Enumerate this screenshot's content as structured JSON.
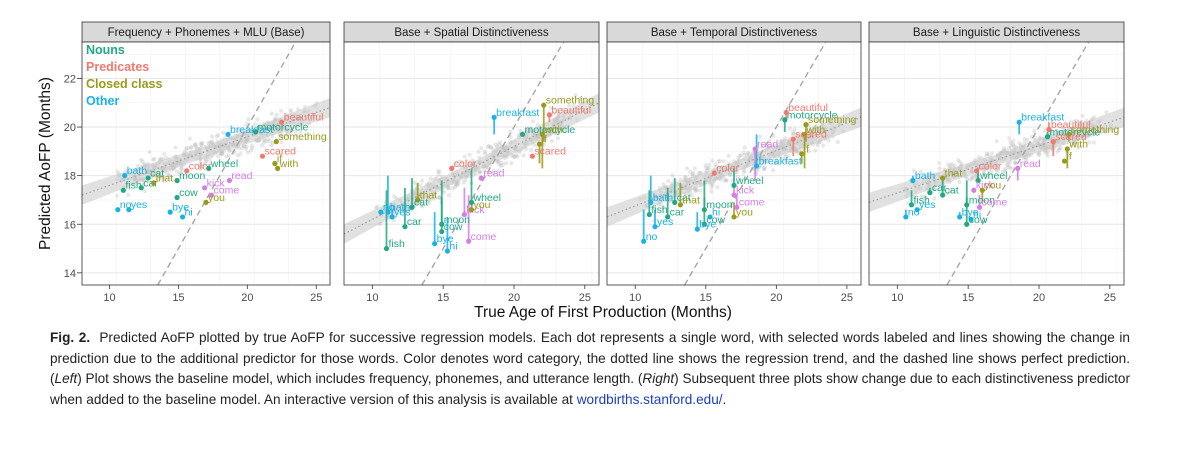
{
  "chart_data": {
    "type": "scatter",
    "ylabel": "Predicted AoFP (Months)",
    "xlabel": "True Age of First Production (Months)",
    "xlim": [
      8,
      26
    ],
    "ylim": [
      13.5,
      23.5
    ],
    "x_ticks": [
      10,
      15,
      20,
      25
    ],
    "y_ticks": [
      14,
      16,
      18,
      20,
      22
    ],
    "grid": true,
    "legend": {
      "placement": "top-left inside first panel",
      "items": [
        {
          "label": "Nouns",
          "color": "#22a884"
        },
        {
          "label": "Predicates",
          "color": "#f07a6e"
        },
        {
          "label": "Closed class",
          "color": "#9a9a1a"
        },
        {
          "label": "Other",
          "color": "#19b2e6"
        }
      ]
    },
    "category_colors": {
      "noun": "#22a884",
      "pred": "#f07a6e",
      "closed": "#9a9a1a",
      "other": "#19b2e6",
      "verb": "#d77ee6"
    },
    "reference_line": "y = x (dashed, perfect prediction)",
    "regression_line": "dotted with grey confidence band",
    "panels": [
      {
        "title": "Frequency + Phonemes + MLU (Base)",
        "trend": [
          [
            8,
            17.2
          ],
          [
            26,
            20.8
          ]
        ],
        "words": [
          {
            "w": "bath",
            "cat": "other",
            "x": 11.1,
            "y": 18.0
          },
          {
            "w": "cat",
            "cat": "noun",
            "x": 12.8,
            "y": 17.9
          },
          {
            "w": "fish",
            "cat": "noun",
            "x": 11.0,
            "y": 17.4
          },
          {
            "w": "car",
            "cat": "noun",
            "x": 12.3,
            "y": 17.5
          },
          {
            "w": "that",
            "cat": "closed",
            "x": 13.2,
            "y": 17.7
          },
          {
            "w": "moon",
            "cat": "noun",
            "x": 14.9,
            "y": 17.8
          },
          {
            "w": "color",
            "cat": "pred",
            "x": 15.6,
            "y": 18.2
          },
          {
            "w": "wheel",
            "cat": "noun",
            "x": 17.2,
            "y": 18.3
          },
          {
            "w": "cow",
            "cat": "noun",
            "x": 14.9,
            "y": 17.1
          },
          {
            "w": "kick",
            "cat": "verb",
            "x": 16.9,
            "y": 17.5
          },
          {
            "w": "come",
            "cat": "verb",
            "x": 17.4,
            "y": 17.2
          },
          {
            "w": "read",
            "cat": "verb",
            "x": 18.7,
            "y": 17.8
          },
          {
            "w": "you",
            "cat": "closed",
            "x": 17.0,
            "y": 16.9
          },
          {
            "w": "no",
            "cat": "other",
            "x": 10.6,
            "y": 16.6
          },
          {
            "w": "yes",
            "cat": "other",
            "x": 11.4,
            "y": 16.6
          },
          {
            "w": "bye",
            "cat": "other",
            "x": 14.4,
            "y": 16.5
          },
          {
            "w": "hi",
            "cat": "other",
            "x": 15.3,
            "y": 16.3
          },
          {
            "w": "breakfast",
            "cat": "other",
            "x": 18.6,
            "y": 19.7
          },
          {
            "w": "beautiful",
            "cat": "pred",
            "x": 22.5,
            "y": 20.2
          },
          {
            "w": "motorcycle",
            "cat": "noun",
            "x": 20.6,
            "y": 19.8
          },
          {
            "w": "something",
            "cat": "closed",
            "x": 22.1,
            "y": 19.4
          },
          {
            "w": "scared",
            "cat": "pred",
            "x": 21.1,
            "y": 18.8
          },
          {
            "w": "if",
            "cat": "closed",
            "x": 22.0,
            "y": 18.5
          },
          {
            "w": "with",
            "cat": "closed",
            "x": 22.2,
            "y": 18.3
          }
        ]
      },
      {
        "title": "Base + Spatial Distinctiveness",
        "trend": [
          [
            8,
            15.6
          ],
          [
            26,
            21.0
          ]
        ],
        "words": [
          {
            "w": "no",
            "cat": "other",
            "x": 10.6,
            "y": 16.5,
            "y0": 16.6
          },
          {
            "w": "bath",
            "cat": "other",
            "x": 11.1,
            "y": 16.5,
            "y0": 18.0
          },
          {
            "w": "yes",
            "cat": "other",
            "x": 11.4,
            "y": 16.3,
            "y0": 16.6
          },
          {
            "w": "fish",
            "cat": "noun",
            "x": 11.0,
            "y": 15.0,
            "y0": 17.4
          },
          {
            "w": "that",
            "cat": "closed",
            "x": 13.2,
            "y": 17.0,
            "y0": 17.7
          },
          {
            "w": "cat",
            "cat": "noun",
            "x": 12.8,
            "y": 16.7,
            "y0": 17.9
          },
          {
            "w": "car",
            "cat": "noun",
            "x": 12.3,
            "y": 15.9,
            "y0": 17.5
          },
          {
            "w": "moon",
            "cat": "noun",
            "x": 14.9,
            "y": 16.0,
            "y0": 17.8
          },
          {
            "w": "cow",
            "cat": "noun",
            "x": 14.9,
            "y": 15.7,
            "y0": 17.1
          },
          {
            "w": "bye",
            "cat": "other",
            "x": 14.4,
            "y": 15.2,
            "y0": 16.5
          },
          {
            "w": "hi",
            "cat": "other",
            "x": 15.3,
            "y": 14.9,
            "y0": 16.3
          },
          {
            "w": "come",
            "cat": "verb",
            "x": 16.8,
            "y": 15.3,
            "y0": 17.2
          },
          {
            "w": "kick",
            "cat": "verb",
            "x": 16.5,
            "y": 16.4,
            "y0": 17.5
          },
          {
            "w": "you",
            "cat": "closed",
            "x": 17.0,
            "y": 16.6,
            "y0": 16.9
          },
          {
            "w": "wheel",
            "cat": "noun",
            "x": 17.0,
            "y": 16.9,
            "y0": 18.3
          },
          {
            "w": "color",
            "cat": "pred",
            "x": 15.6,
            "y": 18.3,
            "y0": 18.2
          },
          {
            "w": "read",
            "cat": "verb",
            "x": 17.7,
            "y": 17.9,
            "y0": 17.8
          },
          {
            "w": "breakfast",
            "cat": "other",
            "x": 18.6,
            "y": 20.4,
            "y0": 19.7
          },
          {
            "w": "motorcycle",
            "cat": "noun",
            "x": 20.6,
            "y": 19.7,
            "y0": 19.8
          },
          {
            "w": "something",
            "cat": "closed",
            "x": 22.1,
            "y": 20.9,
            "y0": 19.4
          },
          {
            "w": "beautiful",
            "cat": "pred",
            "x": 22.5,
            "y": 20.5,
            "y0": 20.2
          },
          {
            "w": "with",
            "cat": "closed",
            "x": 22.0,
            "y": 19.7,
            "y0": 18.3
          },
          {
            "w": "if",
            "cat": "closed",
            "x": 21.8,
            "y": 19.3,
            "y0": 18.5
          },
          {
            "w": "scared",
            "cat": "pred",
            "x": 21.3,
            "y": 18.8,
            "y0": 18.8
          }
        ]
      },
      {
        "title": "Base + Temporal Distinctiveness",
        "trend": [
          [
            8,
            16.3
          ],
          [
            26,
            20.4
          ]
        ],
        "words": [
          {
            "w": "motorcycle",
            "cat": "noun",
            "x": 20.6,
            "y": 20.3,
            "y0": 19.8
          },
          {
            "w": "beautiful",
            "cat": "pred",
            "x": 20.7,
            "y": 20.6,
            "y0": 20.2
          },
          {
            "w": "something",
            "cat": "closed",
            "x": 22.1,
            "y": 20.1,
            "y0": 19.4
          },
          {
            "w": "with",
            "cat": "closed",
            "x": 22.0,
            "y": 19.7,
            "y0": 18.3
          },
          {
            "w": "scared",
            "cat": "pred",
            "x": 21.2,
            "y": 19.5,
            "y0": 18.8
          },
          {
            "w": "read",
            "cat": "verb",
            "x": 18.5,
            "y": 19.1,
            "y0": 17.8
          },
          {
            "w": "if",
            "cat": "closed",
            "x": 21.8,
            "y": 18.9,
            "y0": 18.5
          },
          {
            "w": "breakfast",
            "cat": "other",
            "x": 18.6,
            "y": 18.4,
            "y0": 19.7
          },
          {
            "w": "color",
            "cat": "pred",
            "x": 15.6,
            "y": 18.1,
            "y0": 18.2
          },
          {
            "w": "wheel",
            "cat": "noun",
            "x": 17.0,
            "y": 17.6,
            "y0": 18.3
          },
          {
            "w": "kick",
            "cat": "verb",
            "x": 17.0,
            "y": 17.2,
            "y0": 17.5
          },
          {
            "w": "bath",
            "cat": "other",
            "x": 11.1,
            "y": 16.9,
            "y0": 18.0
          },
          {
            "w": "cat",
            "cat": "noun",
            "x": 12.8,
            "y": 16.9,
            "y0": 17.9
          },
          {
            "w": "that",
            "cat": "closed",
            "x": 13.2,
            "y": 16.8,
            "y0": 17.7
          },
          {
            "w": "moon",
            "cat": "noun",
            "x": 14.9,
            "y": 16.6,
            "y0": 17.8
          },
          {
            "w": "come",
            "cat": "verb",
            "x": 17.2,
            "y": 16.7,
            "y0": 17.2
          },
          {
            "w": "fish",
            "cat": "noun",
            "x": 11.0,
            "y": 16.4,
            "y0": 17.4
          },
          {
            "w": "car",
            "cat": "noun",
            "x": 12.3,
            "y": 16.3,
            "y0": 17.5
          },
          {
            "w": "hi",
            "cat": "other",
            "x": 15.3,
            "y": 16.3,
            "y0": 16.3
          },
          {
            "w": "you",
            "cat": "closed",
            "x": 17.0,
            "y": 16.3,
            "y0": 16.9
          },
          {
            "w": "cow",
            "cat": "noun",
            "x": 14.9,
            "y": 16.0,
            "y0": 17.1
          },
          {
            "w": "yes",
            "cat": "other",
            "x": 11.4,
            "y": 15.9,
            "y0": 16.6
          },
          {
            "w": "bye",
            "cat": "other",
            "x": 14.4,
            "y": 15.8,
            "y0": 16.5
          },
          {
            "w": "no",
            "cat": "other",
            "x": 10.6,
            "y": 15.3,
            "y0": 16.6
          }
        ]
      },
      {
        "title": "Base + Linguistic Distinctiveness",
        "trend": [
          [
            8,
            16.9
          ],
          [
            26,
            20.4
          ]
        ],
        "words": [
          {
            "w": "breakfast",
            "cat": "other",
            "x": 18.6,
            "y": 20.2,
            "y0": 19.7
          },
          {
            "w": "beautiful",
            "cat": "pred",
            "x": 20.7,
            "y": 19.9,
            "y0": 20.2
          },
          {
            "w": "motorcycle",
            "cat": "noun",
            "x": 20.6,
            "y": 19.6,
            "y0": 19.8
          },
          {
            "w": "something",
            "cat": "closed",
            "x": 22.1,
            "y": 19.7,
            "y0": 19.4
          },
          {
            "w": "scared",
            "cat": "pred",
            "x": 21.0,
            "y": 19.4,
            "y0": 18.8
          },
          {
            "w": "with",
            "cat": "closed",
            "x": 22.0,
            "y": 19.1,
            "y0": 18.3
          },
          {
            "w": "if",
            "cat": "closed",
            "x": 21.8,
            "y": 18.6,
            "y0": 18.5
          },
          {
            "w": "read",
            "cat": "verb",
            "x": 18.5,
            "y": 18.3,
            "y0": 17.8
          },
          {
            "w": "color",
            "cat": "pred",
            "x": 15.6,
            "y": 18.2,
            "y0": 18.2
          },
          {
            "w": "bath",
            "cat": "other",
            "x": 11.1,
            "y": 17.8,
            "y0": 18.0
          },
          {
            "w": "that",
            "cat": "closed",
            "x": 13.2,
            "y": 17.9,
            "y0": 17.7
          },
          {
            "w": "wheel",
            "cat": "noun",
            "x": 15.7,
            "y": 17.8,
            "y0": 18.3
          },
          {
            "w": "kick",
            "cat": "verb",
            "x": 15.4,
            "y": 17.4,
            "y0": 17.5
          },
          {
            "w": "you",
            "cat": "closed",
            "x": 16.0,
            "y": 17.4,
            "y0": 16.9
          },
          {
            "w": "car",
            "cat": "noun",
            "x": 12.3,
            "y": 17.3,
            "y0": 17.5
          },
          {
            "w": "cat",
            "cat": "noun",
            "x": 13.2,
            "y": 17.2,
            "y0": 17.9
          },
          {
            "w": "fish",
            "cat": "noun",
            "x": 11.0,
            "y": 16.8,
            "y0": 17.4
          },
          {
            "w": "moon",
            "cat": "noun",
            "x": 14.9,
            "y": 16.8,
            "y0": 17.8
          },
          {
            "w": "come",
            "cat": "verb",
            "x": 15.8,
            "y": 16.7,
            "y0": 17.2
          },
          {
            "w": "yes",
            "cat": "other",
            "x": 11.4,
            "y": 16.6,
            "y0": 16.6
          },
          {
            "w": "no",
            "cat": "other",
            "x": 10.6,
            "y": 16.3,
            "y0": 16.6
          },
          {
            "w": "bye",
            "cat": "other",
            "x": 14.4,
            "y": 16.3,
            "y0": 16.5
          },
          {
            "w": "hi",
            "cat": "other",
            "x": 15.2,
            "y": 16.2,
            "y0": 16.3
          },
          {
            "w": "cow",
            "cat": "noun",
            "x": 14.9,
            "y": 16.0,
            "y0": 17.1
          }
        ]
      }
    ]
  },
  "caption": {
    "label": "Fig. 2.",
    "text": "Predicted AoFP plotted by true AoFP for successive regression models. Each dot represents a single word, with selected words labeled and lines showing the change in prediction due to the additional predictor for those words. Color denotes word category, the dotted line shows the regression trend, and the dashed line shows perfect prediction. (",
    "left_word": "Left",
    "text2": ") Plot shows the baseline model, which includes frequency, phonemes, and utterance length. (",
    "right_word": "Right",
    "text3": ") Subsequent three plots show change due to each distinctiveness predictor when added to the baseline model. An interactive version of this analysis is available at ",
    "link": "wordbirths.stanford.edu/",
    "end": "."
  }
}
